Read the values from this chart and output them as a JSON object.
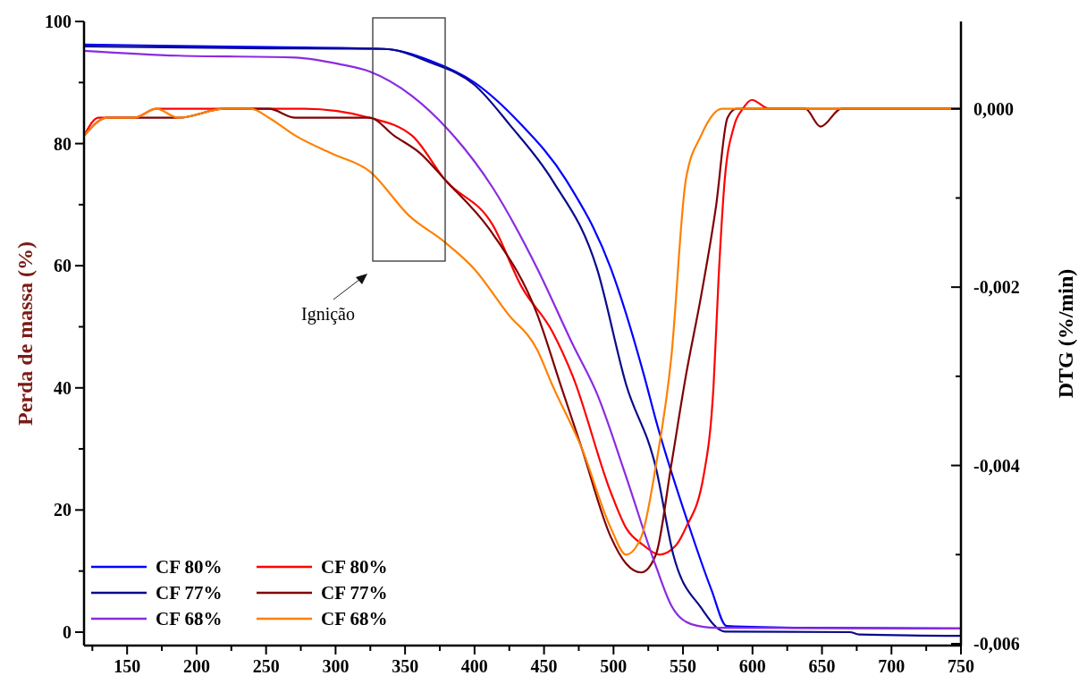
{
  "chart_data": {
    "type": "line",
    "ylabel": "Perda de massa (%)",
    "y2label": "DTG (%/min)",
    "xlim": [
      119,
      750
    ],
    "xticks": [
      {
        "value": 125,
        "label": null
      },
      150,
      {
        "value": 175,
        "label": null
      },
      200,
      {
        "value": 225,
        "label": null
      },
      250,
      {
        "value": 275,
        "label": null
      },
      300,
      {
        "value": 325,
        "label": null
      },
      350,
      {
        "value": 375,
        "label": null
      },
      400,
      {
        "value": 425,
        "label": null
      },
      450,
      {
        "value": 475,
        "label": null
      },
      500,
      {
        "value": 525,
        "label": null
      },
      550,
      {
        "value": 575,
        "label": null
      },
      600,
      {
        "value": 625,
        "label": null
      },
      650,
      {
        "value": 675,
        "label": null
      },
      700,
      {
        "value": 725,
        "label": null
      },
      750
    ],
    "ylim": [
      -2.2,
      100
    ],
    "yticks": [
      0,
      {
        "value": 10,
        "label": null
      },
      20,
      {
        "value": 30,
        "label": null
      },
      40,
      {
        "value": 50,
        "label": null
      },
      60,
      {
        "value": 70,
        "label": null
      },
      80,
      {
        "value": 90,
        "label": null
      },
      100
    ],
    "y2lim": [
      -0.00602,
      0.00098
    ],
    "y2ticks": [
      {
        "value": 0,
        "label": "0,000"
      },
      {
        "value": -0.001,
        "label": null
      },
      {
        "value": -0.002,
        "label": "-0,002"
      },
      {
        "value": -0.003,
        "label": null
      },
      {
        "value": -0.004,
        "label": "-0,004"
      },
      {
        "value": -0.005,
        "label": null
      },
      {
        "value": -0.006,
        "label": "-0,006"
      }
    ],
    "grid": false,
    "legend": "bottom left",
    "marker": "none",
    "line_style": "solid",
    "annotations": [
      "Ignição"
    ],
    "series": [
      {
        "name": "CF 80%",
        "color": "#0000ff",
        "x": [
          119.1,
          252,
          335,
          368,
          400,
          432,
          466,
          498,
          522,
          530.5,
          554,
          570.5,
          581.4,
          638,
          750
        ],
        "values": [
          96.2,
          95.8,
          95.5,
          93.6,
          90.0,
          83.5,
          74.0,
          59.6,
          42.0,
          34.7,
          17.6,
          6.9,
          1.0,
          0.7,
          0.6
        ]
      },
      {
        "name": "CF 80%",
        "color": "#ff0000",
        "axis": "y2",
        "x": [
          119.1,
          129.4,
          139,
          155,
          171,
          187,
          220,
          232,
          252,
          277.5,
          324.5,
          355,
          379,
          413,
          434,
          456,
          470.7,
          498,
          509,
          522,
          533,
          544.7,
          552,
          565,
          572,
          575.6,
          580,
          586.6,
          593,
          599.5,
          612,
          638,
          750
        ],
        "values": [
          -0.0003,
          -0.0001,
          -0.0001,
          -0.0001,
          0,
          0,
          0,
          0,
          0,
          0,
          -0.0001,
          -0.0003,
          -0.0008,
          -0.0013,
          -0.002,
          -0.0025,
          -0.003,
          -0.0043,
          -0.0047,
          -0.0049,
          -0.005,
          -0.0049,
          -0.0047,
          -0.0041,
          -0.0031,
          -0.0019,
          -0.0008,
          -0.0002,
          0,
          0.0001,
          0,
          0,
          0
        ]
      },
      {
        "name": "CF 77%",
        "color": "#0a0a8c",
        "x": [
          119.1,
          252,
          335,
          368,
          400,
          425.6,
          456,
          488,
          509,
          530.5,
          543,
          563,
          580,
          670,
          676.7,
          750
        ],
        "values": [
          95.9,
          95.6,
          95.5,
          93.3,
          89.6,
          83.0,
          74.0,
          59.6,
          40.6,
          26.9,
          12.7,
          4.0,
          0.1,
          0,
          -0.4,
          -0.6
        ]
      },
      {
        "name": "CF 77%",
        "color": "#800000",
        "axis": "y2",
        "x": [
          119.1,
          135.8,
          155,
          187,
          220,
          236,
          252,
          271,
          303,
          324.5,
          342,
          361,
          379,
          413,
          445,
          462,
          477,
          498,
          509,
          520,
          530.5,
          541.5,
          552,
          563,
          573.7,
          582,
          588.5,
          599.5,
          612,
          638,
          649,
          664,
          750
        ],
        "values": [
          -0.0003,
          -0.0001,
          -0.0001,
          -0.0001,
          0,
          0,
          0,
          -0.0001,
          -0.0001,
          -0.0001,
          -0.0003,
          -0.0005,
          -0.0008,
          -0.0014,
          -0.0023,
          -0.0031,
          -0.0038,
          -0.0048,
          -0.0051,
          -0.0052,
          -0.005,
          -0.004,
          -0.003,
          -0.0021,
          -0.0011,
          -0.0001,
          0,
          0,
          0,
          0,
          -0.0002,
          0,
          0
        ]
      },
      {
        "name": "CF 68%",
        "color": "#8a2be2",
        "x": [
          119.1,
          187,
          271,
          303,
          324.5,
          355,
          380.5,
          413,
          445,
          470.7,
          488,
          509,
          530.5,
          541.5,
          556,
          573.7,
          750
        ],
        "values": [
          95.2,
          94.4,
          94.1,
          93.0,
          91.8,
          87.8,
          82.4,
          72.8,
          59.6,
          47.1,
          39.1,
          25.5,
          10.8,
          4.4,
          1.3,
          0.7,
          0.6
        ]
      },
      {
        "name": "CF 68%",
        "color": "#ff8000",
        "axis": "y2",
        "x": [
          119.1,
          135.8,
          155,
          171,
          187,
          220,
          239,
          252,
          271,
          297,
          324.5,
          353,
          379,
          400,
          424,
          445,
          456,
          477,
          498,
          509,
          520,
          530.5,
          541.5,
          552,
          563,
          578,
          612,
          750
        ],
        "values": [
          -0.0003,
          -0.0001,
          -0.0001,
          0,
          -0.0001,
          0,
          0,
          -0.0001,
          -0.0003,
          -0.0005,
          -0.0007,
          -0.0012,
          -0.0015,
          -0.0018,
          -0.0023,
          -0.0027,
          -0.0031,
          -0.0038,
          -0.0047,
          -0.005,
          -0.0048,
          -0.004,
          -0.0028,
          -0.0008,
          -0.0003,
          0,
          0,
          0
        ]
      }
    ]
  }
}
